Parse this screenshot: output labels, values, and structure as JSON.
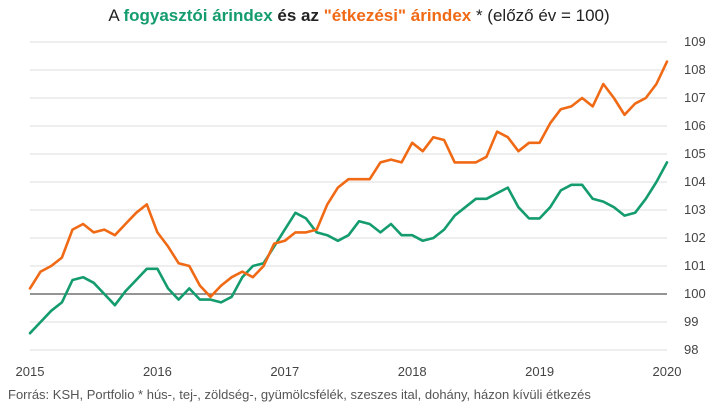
{
  "title": {
    "part1": "A ",
    "series1": "fogyasztói árindex",
    "part2": " és az ",
    "series2": "\"étkezési\" árindex",
    "part3": " * (előző év = 100)"
  },
  "source": "Forrás: KSH, Portfolio * hús-, tej-, zöldség-, gyümölcsfélék, szeszes ital, dohány, házon kívüli étkezés",
  "colors": {
    "green": "#149c6f",
    "orange": "#f06a16",
    "grid": "#dddddd",
    "baseline": "#555555"
  },
  "chart_data": {
    "type": "line",
    "title": "A fogyasztói árindex és az \"étkezési\" árindex * (előző év = 100)",
    "xlim": [
      2015,
      2020
    ],
    "ylim": [
      98,
      109
    ],
    "x_ticks": [
      "2015",
      "2016",
      "2017",
      "2018",
      "2019",
      "2020"
    ],
    "y_ticks": [
      "98",
      "99",
      "100",
      "101",
      "102",
      "103",
      "104",
      "105",
      "106",
      "107",
      "108",
      "109"
    ],
    "reference_line": 100,
    "grid": true,
    "series": [
      {
        "name": "fogyasztói árindex",
        "color": "#149c6f",
        "values": [
          98.6,
          99.0,
          99.4,
          99.7,
          100.5,
          100.6,
          100.4,
          100.0,
          99.6,
          100.1,
          100.5,
          100.9,
          100.9,
          100.2,
          99.8,
          100.2,
          99.8,
          99.8,
          99.7,
          99.9,
          100.6,
          101.0,
          101.1,
          101.7,
          102.3,
          102.9,
          102.7,
          102.2,
          102.1,
          101.9,
          102.1,
          102.6,
          102.5,
          102.2,
          102.5,
          102.1,
          102.1,
          101.9,
          102.0,
          102.3,
          102.8,
          103.1,
          103.4,
          103.4,
          103.6,
          103.8,
          103.1,
          102.7,
          102.7,
          103.1,
          103.7,
          103.9,
          103.9,
          103.4,
          103.3,
          103.1,
          102.8,
          102.9,
          103.4,
          104.0,
          104.7
        ],
        "x_start": 2015,
        "step": "month"
      },
      {
        "name": "\"étkezési\" árindex",
        "color": "#f06a16",
        "values": [
          100.2,
          100.8,
          101.0,
          101.3,
          102.3,
          102.5,
          102.2,
          102.3,
          102.1,
          102.5,
          102.9,
          103.2,
          102.2,
          101.7,
          101.1,
          101.0,
          100.3,
          99.9,
          100.3,
          100.6,
          100.8,
          100.6,
          101.0,
          101.8,
          101.9,
          102.2,
          102.2,
          102.3,
          103.2,
          103.8,
          104.1,
          104.1,
          104.1,
          104.7,
          104.8,
          104.7,
          105.4,
          105.1,
          105.6,
          105.5,
          104.7,
          104.7,
          104.7,
          104.9,
          105.8,
          105.6,
          105.1,
          105.4,
          105.4,
          106.1,
          106.6,
          106.7,
          107.0,
          106.7,
          107.5,
          107.0,
          106.4,
          106.8,
          107.0,
          107.5,
          108.3
        ],
        "x_start": 2015,
        "step": "month"
      }
    ]
  }
}
